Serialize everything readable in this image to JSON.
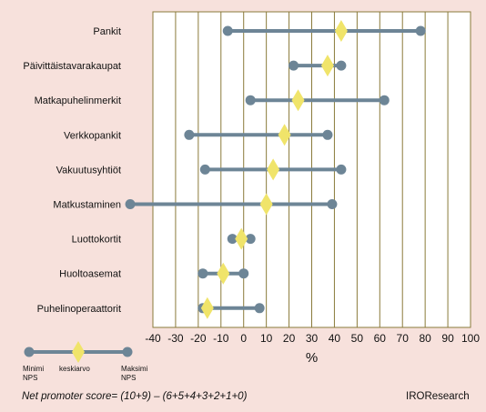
{
  "chart_data": {
    "type": "dumbbell",
    "unit": "%",
    "xlabel": "%",
    "xlim": [
      -40,
      100
    ],
    "xticks": [
      -40,
      -30,
      -20,
      -10,
      0,
      10,
      20,
      30,
      40,
      50,
      60,
      70,
      80,
      90,
      100
    ],
    "grid": "vertical",
    "categories": [
      "Pankit",
      "Päivittäistavarakaupat",
      "Matkapuhelinmerkit",
      "Verkkopankit",
      "Vakuutusyhtiöt",
      "Matkustaminen",
      "Luottokortit",
      "Huoltoasemat",
      "Puhelinoperaattorit"
    ],
    "series": [
      {
        "name": "Minimi NPS",
        "values": [
          -7,
          22,
          3,
          -24,
          -17,
          -50,
          -5,
          -18,
          -18
        ]
      },
      {
        "name": "keskiarvo",
        "values": [
          43,
          37,
          24,
          18,
          13,
          10,
          -1,
          -9,
          -16
        ]
      },
      {
        "name": "Maksimi NPS",
        "values": [
          78,
          43,
          62,
          37,
          43,
          39,
          3,
          0,
          7
        ]
      }
    ],
    "legend": {
      "position": "bottom-left",
      "min_label_line1": "Minimi",
      "min_label_line2": "NPS",
      "avg_label": "keskiarvo",
      "max_label_line1": "Maksimi",
      "max_label_line2": "NPS"
    },
    "colors": {
      "background": "#f7e1dc",
      "plot_background": "#ffffff",
      "grid": "#8a7a3a",
      "line": "#6d8596",
      "endpoint": "#6d8596",
      "average_marker": "#f0e46a"
    }
  },
  "footnote": "Net promoter score= (10+9) – (6+5+4+3+2+1+0)",
  "source": "IROResearch"
}
